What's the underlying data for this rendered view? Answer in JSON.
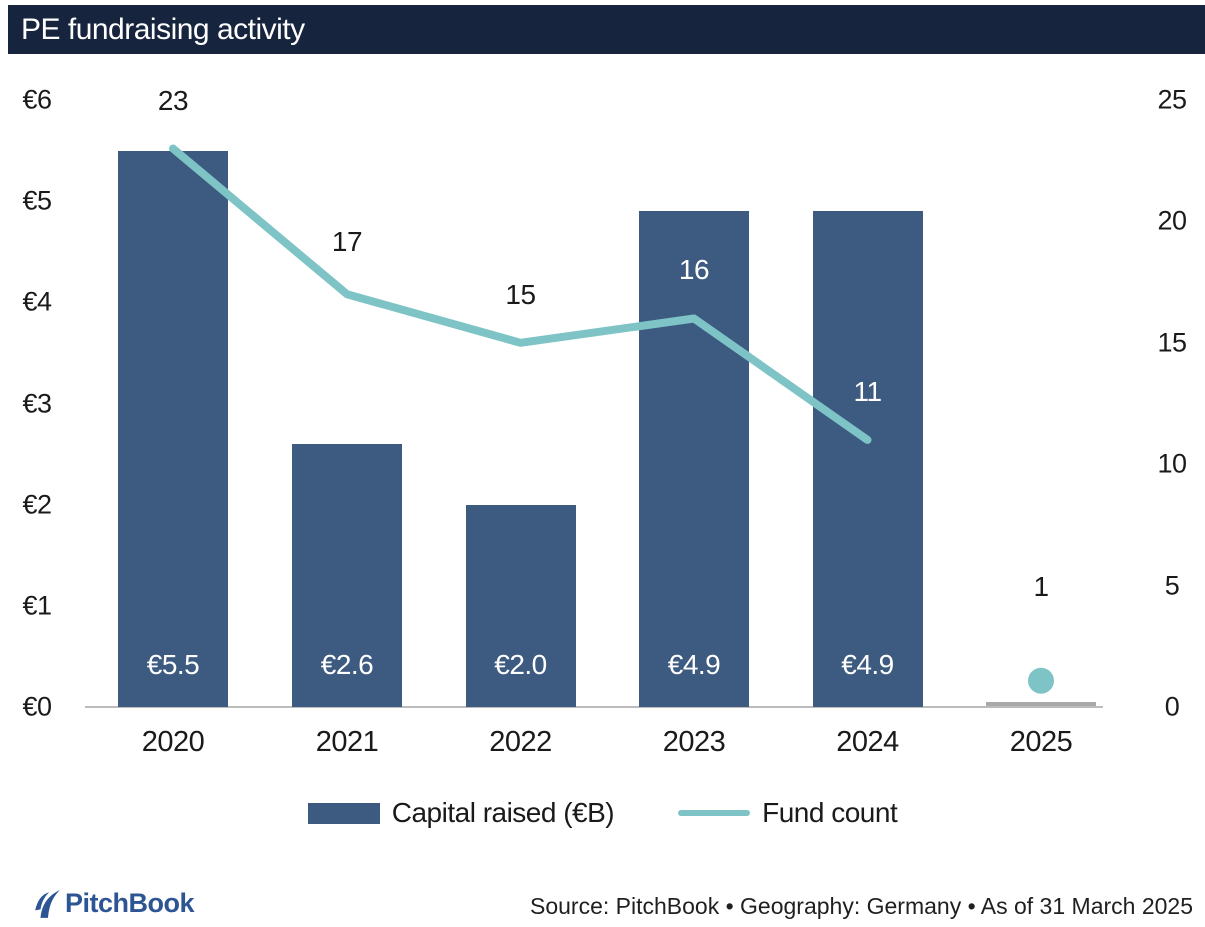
{
  "title": "PE fundraising activity",
  "chart_data": {
    "type": "combo-bar-line",
    "categories": [
      "2020",
      "2021",
      "2022",
      "2023",
      "2024",
      "2025"
    ],
    "series": [
      {
        "name": "Capital raised (€B)",
        "type": "bar",
        "axis": "left",
        "values": [
          5.5,
          2.6,
          2.0,
          4.9,
          4.9,
          0.03
        ],
        "labels": [
          "€5.5",
          "€2.6",
          "€2.0",
          "€4.9",
          "€4.9",
          ""
        ],
        "color": "#3d5a81",
        "bar_colors": [
          "#3d5a81",
          "#3d5a81",
          "#3d5a81",
          "#3d5a81",
          "#3d5a81",
          "#a9a9a9"
        ]
      },
      {
        "name": "Fund count",
        "type": "line",
        "axis": "right",
        "values": [
          23,
          17,
          15,
          16,
          11,
          1
        ],
        "labels": [
          "23",
          "17",
          "15",
          "16",
          "11",
          "1"
        ],
        "color": "#7ec3c6",
        "line_through_index": 4,
        "isolated_point_indices": [
          5
        ],
        "label_colors": [
          "#1a1a1a",
          "#1a1a1a",
          "#1a1a1a",
          "#ffffff",
          "#ffffff",
          "#1a1a1a"
        ],
        "label_dy": [
          -47,
          -51,
          -47,
          -48,
          -47,
          -95
        ]
      }
    ],
    "left_axis": {
      "min": 0,
      "max": 6,
      "tick_values": [
        0,
        1,
        2,
        3,
        4,
        5,
        6
      ],
      "tick_labels": [
        "€0",
        "€1",
        "€2",
        "€3",
        "€4",
        "€5",
        "€6"
      ]
    },
    "right_axis": {
      "min": 0,
      "max": 25,
      "tick_values": [
        0,
        5,
        10,
        15,
        20,
        25
      ],
      "tick_labels": [
        "0",
        "5",
        "10",
        "15",
        "20",
        "25"
      ]
    },
    "grid": "off",
    "legend_position": "bottom"
  },
  "legend": {
    "items": [
      {
        "label": "Capital raised (€B)",
        "swatch": "bar",
        "color": "#3d5a81"
      },
      {
        "label": "Fund count",
        "swatch": "line",
        "color": "#7ec3c6"
      }
    ]
  },
  "footer": {
    "logo_text": "PitchBook",
    "source_text": "Source: PitchBook • Geography: Germany • As of 31 March 2025"
  },
  "colors": {
    "title_bar_bg": "#17243e",
    "title_text": "#ffffff",
    "bar": "#3d5a81",
    "bar_2025": "#a9a9a9",
    "line": "#7ec3c6",
    "axis_line": "#bcbcbc",
    "text": "#1a1a1a",
    "bar_value_text": "#ffffff",
    "logo_blue": "#2d5593"
  }
}
